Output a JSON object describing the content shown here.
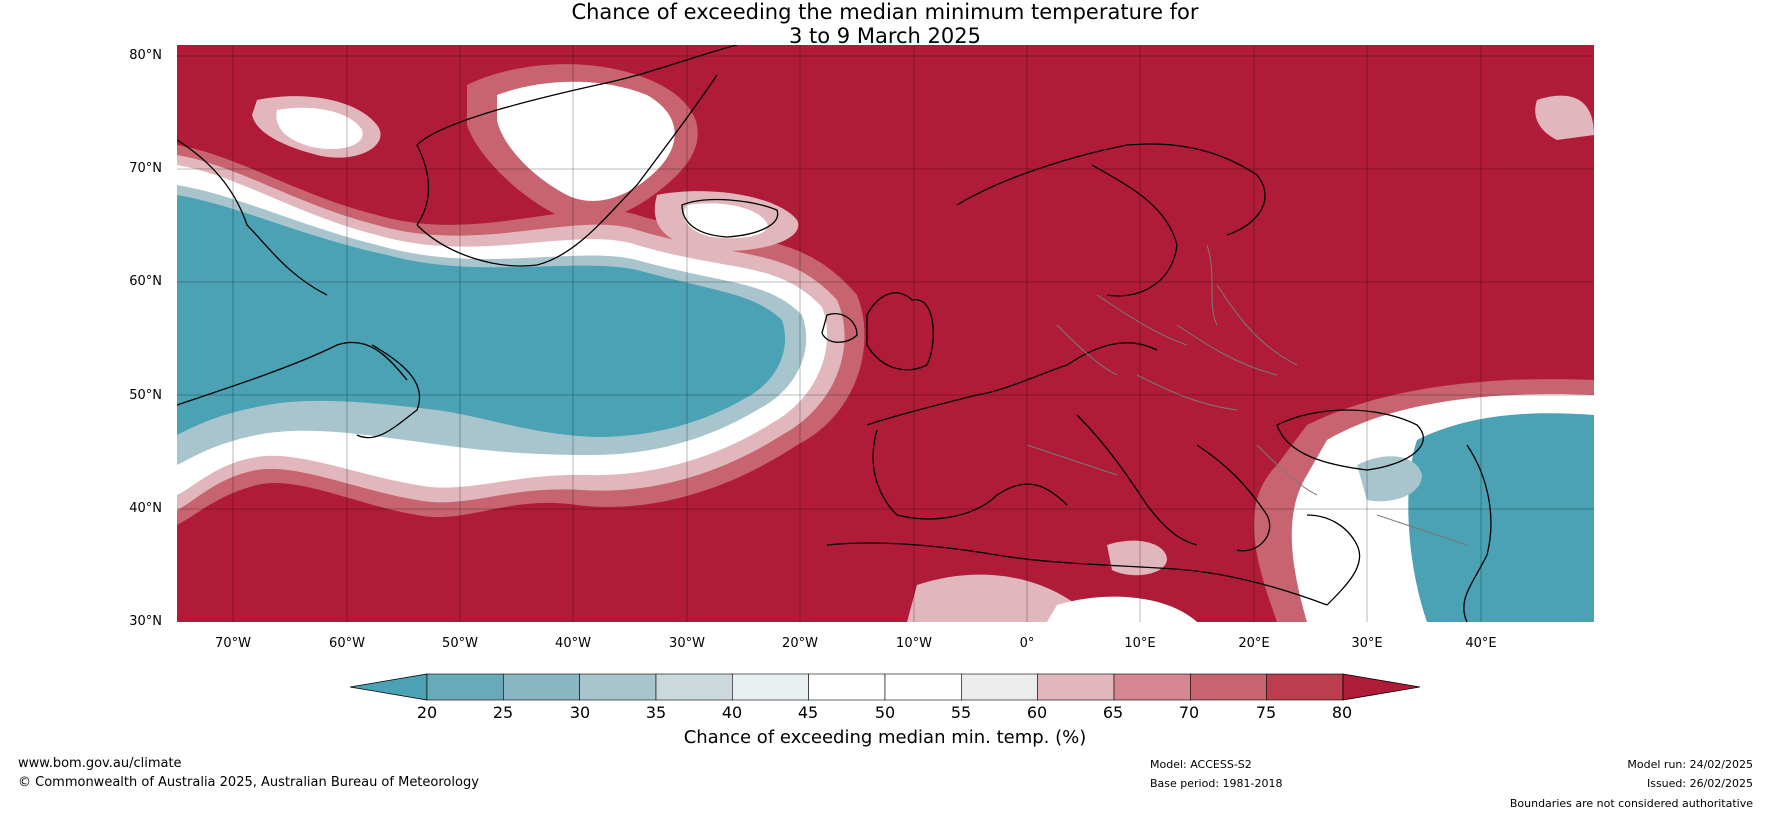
{
  "title": {
    "line1": "Chance of exceeding the median minimum temperature for",
    "line2": "3 to 9 March 2025"
  },
  "axes": {
    "lat_labels": [
      "80°N",
      "70°N",
      "60°N",
      "50°N",
      "40°N",
      "30°N"
    ],
    "lon_labels": [
      "70°W",
      "60°W",
      "50°W",
      "40°W",
      "30°W",
      "20°W",
      "10°W",
      "0°",
      "10°E",
      "20°E",
      "30°E",
      "40°E"
    ]
  },
  "colorbar": {
    "ticks": [
      "20",
      "25",
      "30",
      "35",
      "40",
      "45",
      "50",
      "55",
      "60",
      "65",
      "70",
      "75",
      "80"
    ],
    "label": "Chance of exceeding median min. temp. (%)",
    "colors": {
      "below_20": "#4aa2b4",
      "20-25": "#69aab9",
      "25-30": "#88b6c3",
      "30-35": "#a8c5cd",
      "35-40": "#cbd8dc",
      "40-45": "#e9f0f2",
      "45-50": "#ffffff",
      "50-55": "#ffffff",
      "55-60": "#ececec",
      "60-65": "#e1b7bd",
      "65-70": "#d58690",
      "70-75": "#c8646f",
      "75-80": "#bc3d4d",
      "above_80": "#b01c37"
    }
  },
  "footer": {
    "website": "www.bom.gov.au/climate",
    "copyright": "© Commonwealth of Australia 2025, Australian Bureau of Meteorology",
    "model": "Model: ACCESS-S2",
    "base_period": "Base period: 1981-2018",
    "model_run": "Model run: 24/02/2025",
    "issued": "Issued: 26/02/2025",
    "boundaries": "Boundaries are not considered authoritative"
  },
  "map": {
    "extent": {
      "lon_min": -75,
      "lon_max": 50,
      "lat_min": 30,
      "lat_max": 81
    },
    "grid": "on",
    "icons": [
      "coastline-layer",
      "country-border-layer"
    ]
  }
}
